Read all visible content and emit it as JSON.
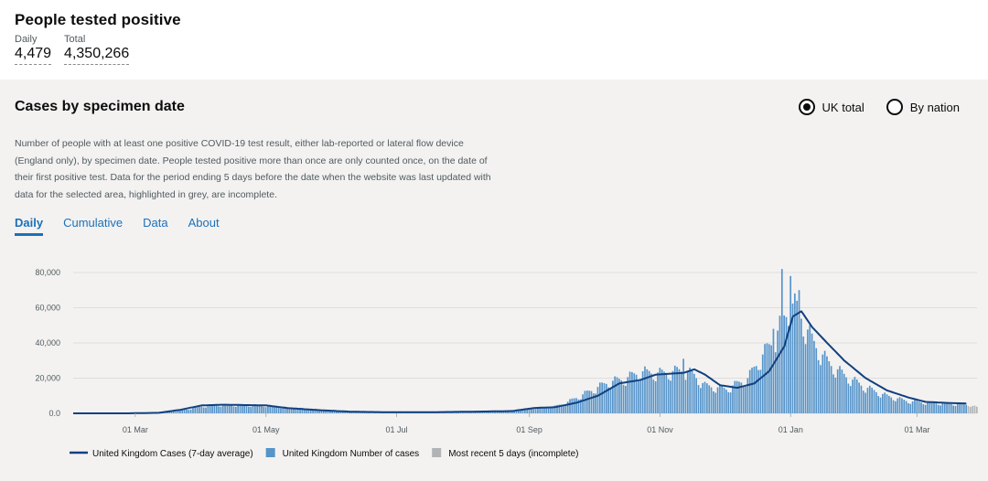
{
  "headline": {
    "title": "People tested positive",
    "daily_label": "Daily",
    "daily_value": "4,479",
    "total_label": "Total",
    "total_value": "4,350,266"
  },
  "card": {
    "title": "Cases by specimen date",
    "radio_uk": "UK total",
    "radio_nation": "By nation",
    "selected": "UK total",
    "description": "Number of people with at least one positive COVID-19 test result, either lab-reported or lateral flow device (England only), by specimen date. People tested positive more than once are only counted once, on the date of their first positive test. Data for the period ending 5 days before the date when the website was last updated with data for the selected area, highlighted in grey, are incomplete.",
    "tabs": [
      "Daily",
      "Cumulative",
      "Data",
      "About"
    ],
    "active_tab": "Daily"
  },
  "colors": {
    "bar": "#5694ca",
    "line": "#12407f",
    "incomplete": "#b1b4b6",
    "grid": "#dddddd"
  },
  "chart_data": {
    "type": "bar",
    "y_ticks": [
      "0.0",
      "20,000",
      "40,000",
      "60,000",
      "80,000"
    ],
    "ylim": [
      0,
      80000
    ],
    "x_ticks": [
      "01 Mar",
      "01 May",
      "01 Jul",
      "01 Sep",
      "01 Nov",
      "01 Jan",
      "01 Mar"
    ],
    "x_tick_days": [
      29,
      90,
      151,
      213,
      274,
      335,
      394
    ],
    "x_start": "2020-01-31",
    "x_end_day": 422,
    "incomplete_days": 5,
    "anchors_daily": [
      [
        0,
        0
      ],
      [
        25,
        0
      ],
      [
        40,
        200
      ],
      [
        50,
        1500
      ],
      [
        60,
        4000
      ],
      [
        68,
        4800
      ],
      [
        80,
        4700
      ],
      [
        90,
        4500
      ],
      [
        100,
        3200
      ],
      [
        115,
        2200
      ],
      [
        125,
        1200
      ],
      [
        135,
        800
      ],
      [
        151,
        700
      ],
      [
        170,
        800
      ],
      [
        190,
        1200
      ],
      [
        205,
        1500
      ],
      [
        215,
        3000
      ],
      [
        225,
        4000
      ],
      [
        230,
        6000
      ],
      [
        240,
        12000
      ],
      [
        250,
        18000
      ],
      [
        258,
        20000
      ],
      [
        265,
        24000
      ],
      [
        275,
        23000
      ],
      [
        285,
        25000
      ],
      [
        290,
        22000
      ],
      [
        295,
        16000
      ],
      [
        305,
        14000
      ],
      [
        315,
        20000
      ],
      [
        320,
        30000
      ],
      [
        327,
        42000
      ],
      [
        333,
        57000
      ],
      [
        335,
        64000
      ],
      [
        340,
        56000
      ],
      [
        345,
        42000
      ],
      [
        352,
        30000
      ],
      [
        360,
        22000
      ],
      [
        370,
        15000
      ],
      [
        380,
        10000
      ],
      [
        390,
        7000
      ],
      [
        400,
        6000
      ],
      [
        410,
        5500
      ],
      [
        418,
        5000
      ],
      [
        422,
        3500
      ]
    ],
    "anchors_avg": [
      [
        0,
        0
      ],
      [
        25,
        0
      ],
      [
        40,
        300
      ],
      [
        50,
        2000
      ],
      [
        60,
        4500
      ],
      [
        70,
        4900
      ],
      [
        80,
        4700
      ],
      [
        90,
        4500
      ],
      [
        100,
        3000
      ],
      [
        115,
        1800
      ],
      [
        130,
        900
      ],
      [
        151,
        600
      ],
      [
        170,
        700
      ],
      [
        190,
        1000
      ],
      [
        205,
        1300
      ],
      [
        215,
        3000
      ],
      [
        225,
        3500
      ],
      [
        235,
        6000
      ],
      [
        245,
        10000
      ],
      [
        255,
        17000
      ],
      [
        265,
        19000
      ],
      [
        272,
        22000
      ],
      [
        285,
        23000
      ],
      [
        290,
        25000
      ],
      [
        295,
        22000
      ],
      [
        302,
        16000
      ],
      [
        310,
        14500
      ],
      [
        318,
        17000
      ],
      [
        325,
        24000
      ],
      [
        332,
        38000
      ],
      [
        336,
        55000
      ],
      [
        340,
        58000
      ],
      [
        345,
        49000
      ],
      [
        352,
        40000
      ],
      [
        360,
        30000
      ],
      [
        370,
        20000
      ],
      [
        380,
        13000
      ],
      [
        390,
        9000
      ],
      [
        398,
        6500
      ],
      [
        410,
        5800
      ],
      [
        422,
        5500
      ]
    ],
    "spikes": [
      [
        331,
        82000
      ],
      [
        335,
        78000
      ],
      [
        339,
        70000
      ],
      [
        327,
        48000
      ],
      [
        285,
        31000
      ],
      [
        268,
        25000
      ]
    ],
    "legend": [
      {
        "kind": "line",
        "label": "United Kingdom Cases (7-day average)"
      },
      {
        "kind": "bar",
        "label": "United Kingdom Number of cases"
      },
      {
        "kind": "incomplete",
        "label": "Most recent 5 days (incomplete)"
      }
    ]
  }
}
